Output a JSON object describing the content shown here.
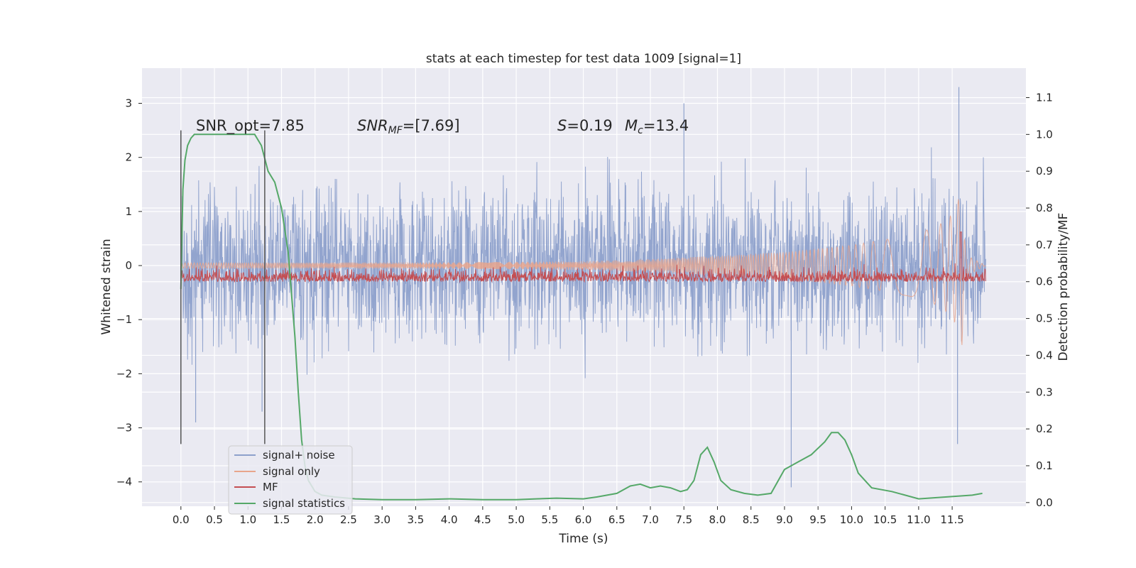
{
  "chart_data": {
    "type": "line",
    "title": "stats at each timestep for test data 1009 [signal=1]",
    "xlabel": "Time (s)",
    "ylabel_left": "Whitened strain",
    "ylabel_right": "Detection probability/MF",
    "xlim": [
      -0.58,
      12.6
    ],
    "ylim_left": [
      -4.45,
      3.65
    ],
    "ylim_right": [
      -0.01,
      1.18
    ],
    "x_ticks": [
      "0.0",
      "0.5",
      "1.0",
      "1.5",
      "2.0",
      "2.5",
      "3.0",
      "3.5",
      "4.0",
      "4.5",
      "5.0",
      "5.5",
      "6.0",
      "6.5",
      "7.0",
      "7.5",
      "8.0",
      "8.5",
      "9.0",
      "9.5",
      "10.0",
      "10.5",
      "11.0",
      "11.5"
    ],
    "y_ticks_left": [
      "3",
      "2",
      "1",
      "0",
      "−1",
      "−2",
      "−3",
      "−4"
    ],
    "y_ticks_right": [
      "1.1",
      "1.0",
      "0.9",
      "0.8",
      "0.7",
      "0.6",
      "0.5",
      "0.4",
      "0.3",
      "0.2",
      "0.1",
      "0.0"
    ],
    "grid": true,
    "legend_position": "lower-left",
    "annotations": {
      "snr_opt": "SNR_opt=7.85",
      "snr_mf_name": "SNR",
      "snr_mf_sub": "MF",
      "snr_mf_value": "=[7.69]",
      "s_name": "S",
      "s_value": "=0.19",
      "mc_name": "M",
      "mc_sub": "c",
      "mc_value": "=13.4"
    },
    "vertical_lines_x": [
      0.0,
      1.25
    ],
    "series": [
      {
        "name": "signal+ noise",
        "axis": "left",
        "color": "#8da0cb",
        "description_values": {
          "x_range": [
            0.0,
            12.0
          ],
          "amplitude_approx": 2.2,
          "max": 3.3,
          "min": -4.1
        }
      },
      {
        "name": "signal only",
        "axis": "left",
        "color": "#e8a58c",
        "envelope_x": [
          0.0,
          4.0,
          6.0,
          7.0,
          8.0,
          9.0,
          10.0,
          10.5,
          11.0,
          11.3,
          11.5,
          11.6,
          11.65,
          11.7,
          12.0
        ],
        "envelope_y": [
          0.05,
          0.06,
          0.08,
          0.12,
          0.18,
          0.25,
          0.38,
          0.48,
          0.6,
          0.75,
          0.95,
          1.25,
          1.5,
          0.2,
          0.0
        ]
      },
      {
        "name": "MF",
        "axis": "right",
        "color": "#c44e52",
        "base_value": 0.6,
        "range": [
          0.58,
          0.73
        ],
        "peak_x": 11.63,
        "peak_y": 0.735
      },
      {
        "name": "signal statistics",
        "axis": "right",
        "color": "#55a868",
        "x": [
          0.0,
          0.03,
          0.06,
          0.1,
          0.15,
          0.2,
          0.3,
          0.5,
          0.8,
          1.0,
          1.1,
          1.2,
          1.3,
          1.4,
          1.5,
          1.6,
          1.7,
          1.75,
          1.8,
          1.85,
          1.9,
          2.0,
          2.1,
          2.3,
          2.6,
          3.0,
          3.5,
          4.0,
          4.5,
          5.0,
          5.3,
          5.6,
          6.0,
          6.2,
          6.5,
          6.7,
          6.85,
          7.0,
          7.15,
          7.3,
          7.45,
          7.55,
          7.65,
          7.75,
          7.85,
          7.95,
          8.05,
          8.2,
          8.4,
          8.6,
          8.8,
          9.0,
          9.2,
          9.4,
          9.6,
          9.7,
          9.8,
          9.9,
          10.0,
          10.1,
          10.3,
          10.6,
          11.0,
          11.4,
          11.8,
          11.95
        ],
        "y": [
          0.58,
          0.85,
          0.93,
          0.97,
          0.99,
          1.0,
          1.0,
          1.0,
          1.0,
          1.0,
          1.0,
          0.97,
          0.9,
          0.87,
          0.8,
          0.68,
          0.45,
          0.3,
          0.17,
          0.1,
          0.06,
          0.03,
          0.02,
          0.015,
          0.01,
          0.008,
          0.008,
          0.01,
          0.008,
          0.008,
          0.01,
          0.012,
          0.01,
          0.015,
          0.025,
          0.045,
          0.05,
          0.04,
          0.045,
          0.04,
          0.03,
          0.035,
          0.06,
          0.13,
          0.15,
          0.11,
          0.06,
          0.035,
          0.025,
          0.02,
          0.025,
          0.09,
          0.11,
          0.13,
          0.165,
          0.19,
          0.19,
          0.17,
          0.13,
          0.08,
          0.04,
          0.03,
          0.01,
          0.015,
          0.02,
          0.025
        ]
      }
    ]
  }
}
